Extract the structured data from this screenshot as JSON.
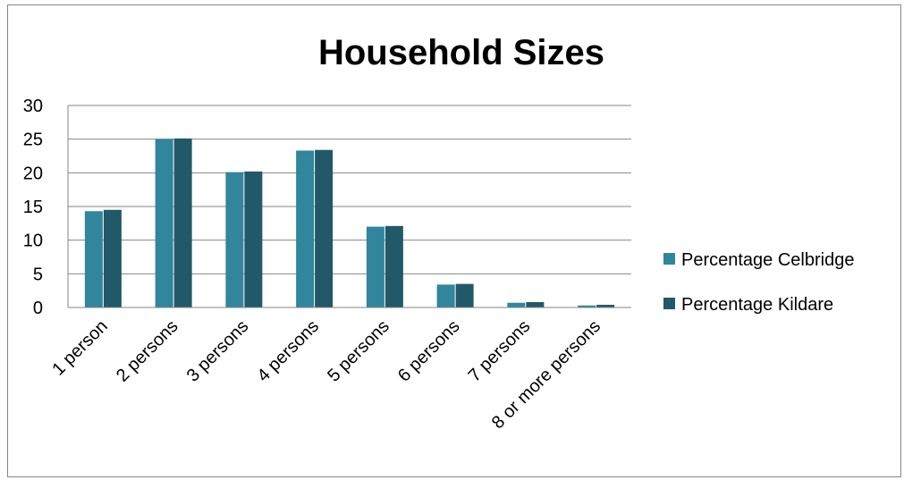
{
  "chart_data": {
    "type": "bar",
    "title": "Household Sizes",
    "xlabel": "",
    "ylabel": "",
    "categories": [
      "1 person",
      "2 persons",
      "3 persons",
      "4 persons",
      "5 persons",
      "6 persons",
      "7 persons",
      "8 or more persons"
    ],
    "series": [
      {
        "name": "Percentage Celbridge",
        "color": "#31859C",
        "values": [
          14.3,
          25.0,
          20.1,
          23.3,
          12.0,
          3.4,
          0.7,
          0.3
        ]
      },
      {
        "name": "Percentage Kildare",
        "color": "#215968",
        "values": [
          14.5,
          25.1,
          20.2,
          23.4,
          12.1,
          3.5,
          0.8,
          0.4
        ]
      }
    ],
    "ylim": [
      0,
      30
    ],
    "yticks": [
      "0",
      "5",
      "10",
      "15",
      "20",
      "25",
      "30"
    ],
    "grid": true,
    "legend_position": "right"
  }
}
